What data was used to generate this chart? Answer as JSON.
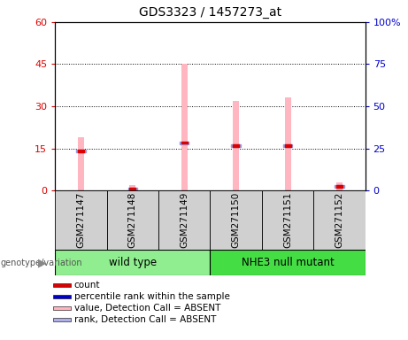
{
  "title": "GDS3323 / 1457273_at",
  "samples": [
    "GSM271147",
    "GSM271148",
    "GSM271149",
    "GSM271150",
    "GSM271151",
    "GSM271152"
  ],
  "pink_bar_values": [
    19,
    2,
    45,
    32,
    33,
    3
  ],
  "blue_marker_values": [
    14,
    0.5,
    17,
    16,
    16,
    1.5
  ],
  "red_marker_values": [
    14,
    0.5,
    17,
    16,
    16,
    1.5
  ],
  "groups": [
    {
      "label": "wild type",
      "samples": [
        0,
        1,
        2
      ],
      "color": "#90EE90"
    },
    {
      "label": "NHE3 null mutant",
      "samples": [
        3,
        4,
        5
      ],
      "color": "#44DD44"
    }
  ],
  "ylim_left": [
    0,
    60
  ],
  "ylim_right": [
    0,
    100
  ],
  "yticks_left": [
    0,
    15,
    30,
    45,
    60
  ],
  "yticks_right": [
    0,
    25,
    50,
    75,
    100
  ],
  "ytick_labels_left": [
    "0",
    "15",
    "30",
    "45",
    "60"
  ],
  "ytick_labels_right": [
    "0",
    "25",
    "50",
    "75",
    "100%"
  ],
  "left_axis_color": "#dd0000",
  "right_axis_color": "#0000cc",
  "pink_color": "#ffb6c1",
  "blue_color": "#9999dd",
  "red_color": "#dd0000",
  "legend_items": [
    {
      "color": "#dd0000",
      "label": "count"
    },
    {
      "color": "#0000cc",
      "label": "percentile rank within the sample"
    },
    {
      "color": "#ffb6c1",
      "label": "value, Detection Call = ABSENT"
    },
    {
      "color": "#b0b0e8",
      "label": "rank, Detection Call = ABSENT"
    }
  ],
  "group_label_prefix": "genotype/variation"
}
